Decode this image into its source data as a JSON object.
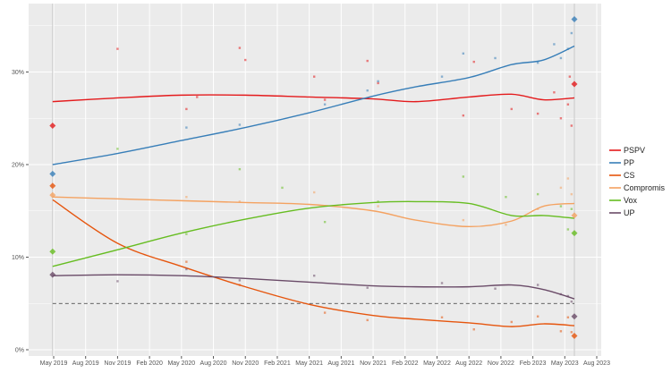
{
  "chart_data": {
    "type": "line",
    "title": "",
    "xlabel": "",
    "ylabel": "",
    "ylim": [
      0,
      36
    ],
    "xlim": [
      "2019-04",
      "2023-08"
    ],
    "y_ticks": [
      {
        "v": 0,
        "label": "0%"
      },
      {
        "v": 10,
        "label": "10%"
      },
      {
        "v": 20,
        "label": "20%"
      },
      {
        "v": 30,
        "label": "30%"
      }
    ],
    "x_ticks": [
      {
        "d": "2019-05",
        "label": "May 2019"
      },
      {
        "d": "2019-08",
        "label": "Aug 2019"
      },
      {
        "d": "2019-11",
        "label": "Nov 2019"
      },
      {
        "d": "2020-02",
        "label": "Feb 2020"
      },
      {
        "d": "2020-05",
        "label": "May 2020"
      },
      {
        "d": "2020-08",
        "label": "Aug 2020"
      },
      {
        "d": "2020-11",
        "label": "Nov 2020"
      },
      {
        "d": "2021-02",
        "label": "Feb 2021"
      },
      {
        "d": "2021-05",
        "label": "May 2021"
      },
      {
        "d": "2021-08",
        "label": "Aug 2021"
      },
      {
        "d": "2021-11",
        "label": "Nov 2021"
      },
      {
        "d": "2022-02",
        "label": "Feb 2022"
      },
      {
        "d": "2022-05",
        "label": "May 2022"
      },
      {
        "d": "2022-08",
        "label": "Aug 2022"
      },
      {
        "d": "2022-11",
        "label": "Nov 2022"
      },
      {
        "d": "2023-02",
        "label": "Feb 2023"
      },
      {
        "d": "2023-05",
        "label": "May 2023"
      },
      {
        "d": "2023-08",
        "label": "Aug 2023"
      }
    ],
    "grid": true,
    "threshold_line": 5,
    "election_dates": [
      "2019-04-28",
      "2023-05-28"
    ],
    "legend_position": "right",
    "trend_dates": [
      "2019-04-28",
      "2019-11-01",
      "2020-05-01",
      "2020-11-01",
      "2021-05-01",
      "2021-11-01",
      "2022-03-01",
      "2022-08-01",
      "2022-12-01",
      "2023-03-01",
      "2023-05-28"
    ],
    "series": [
      {
        "name": "PSPV",
        "color": "#e41a1c",
        "trend": [
          26.8,
          27.2,
          27.5,
          27.5,
          27.3,
          27.1,
          26.8,
          27.3,
          27.6,
          27.0,
          27.2
        ],
        "elections": [
          24.2,
          28.7
        ],
        "polls": [
          [
            "2019-11-01",
            32.5
          ],
          [
            "2020-05-15",
            26
          ],
          [
            "2020-06-15",
            27.3
          ],
          [
            "2020-10-15",
            32.6
          ],
          [
            "2020-11-01",
            31.3
          ],
          [
            "2021-05-15",
            29.5
          ],
          [
            "2021-06-15",
            27
          ],
          [
            "2021-10-15",
            31.2
          ],
          [
            "2021-11-15",
            28.8
          ],
          [
            "2022-07-15",
            25.3
          ],
          [
            "2022-08-15",
            31.1
          ],
          [
            "2022-12-01",
            26
          ],
          [
            "2023-02-15",
            25.5
          ],
          [
            "2023-04-01",
            27.8
          ],
          [
            "2023-04-20",
            25
          ],
          [
            "2023-05-10",
            26.5
          ],
          [
            "2023-05-15",
            29.5
          ],
          [
            "2023-05-20",
            24.2
          ]
        ]
      },
      {
        "name": "PP",
        "color": "#377eb8",
        "trend": [
          20.0,
          21.2,
          22.6,
          24.0,
          25.6,
          27.4,
          28.4,
          29.4,
          30.8,
          31.3,
          32.8
        ],
        "elections": [
          19.0,
          35.7
        ],
        "polls": [
          [
            "2020-05-15",
            24
          ],
          [
            "2020-10-15",
            24.3
          ],
          [
            "2021-06-15",
            26.5
          ],
          [
            "2021-10-15",
            28
          ],
          [
            "2021-11-15",
            29
          ],
          [
            "2022-05-15",
            29.5
          ],
          [
            "2022-07-15",
            32
          ],
          [
            "2022-10-15",
            31.5
          ],
          [
            "2023-02-15",
            31
          ],
          [
            "2023-04-01",
            33
          ],
          [
            "2023-04-20",
            31.5
          ],
          [
            "2023-05-10",
            32.5
          ],
          [
            "2023-05-20",
            34.2
          ]
        ]
      },
      {
        "name": "CS",
        "color": "#e6550d",
        "trend": [
          16.2,
          11.5,
          9.0,
          6.8,
          4.9,
          3.7,
          3.3,
          2.9,
          2.5,
          2.8,
          2.6
        ],
        "elections": [
          17.7,
          1.5
        ],
        "polls": [
          [
            "2020-05-15",
            9.5
          ],
          [
            "2020-10-15",
            7
          ],
          [
            "2021-06-15",
            4
          ],
          [
            "2021-10-15",
            3.2
          ],
          [
            "2022-05-15",
            3.5
          ],
          [
            "2022-08-15",
            2.2
          ],
          [
            "2022-12-01",
            3
          ],
          [
            "2023-02-15",
            3.6
          ],
          [
            "2023-04-20",
            2
          ],
          [
            "2023-05-10",
            3.5
          ],
          [
            "2023-05-20",
            1.9
          ]
        ]
      },
      {
        "name": "Compromis",
        "color": "#f4a261",
        "trend": [
          16.5,
          16.3,
          16.1,
          15.9,
          15.7,
          15.0,
          14.0,
          13.3,
          13.9,
          15.5,
          15.8
        ],
        "elections": [
          16.7,
          14.5
        ],
        "polls": [
          [
            "2020-05-15",
            16.5
          ],
          [
            "2020-10-15",
            16
          ],
          [
            "2021-05-15",
            17
          ],
          [
            "2021-11-15",
            15.5
          ],
          [
            "2022-07-15",
            14
          ],
          [
            "2022-11-15",
            13.5
          ],
          [
            "2023-02-15",
            15.2
          ],
          [
            "2023-04-20",
            17.5
          ],
          [
            "2023-05-10",
            18.5
          ],
          [
            "2023-05-20",
            16.8
          ]
        ]
      },
      {
        "name": "Vox",
        "color": "#66bd21",
        "trend": [
          9.0,
          10.8,
          12.6,
          14.1,
          15.3,
          15.9,
          16.0,
          15.8,
          14.5,
          14.5,
          14.2
        ],
        "elections": [
          10.6,
          12.6
        ],
        "polls": [
          [
            "2019-11-01",
            21.7
          ],
          [
            "2020-05-15",
            12.5
          ],
          [
            "2020-10-15",
            19.5
          ],
          [
            "2021-02-15",
            17.5
          ],
          [
            "2021-06-15",
            13.8
          ],
          [
            "2021-11-15",
            16
          ],
          [
            "2022-07-15",
            18.7
          ],
          [
            "2022-11-15",
            16.5
          ],
          [
            "2023-02-15",
            16.8
          ],
          [
            "2023-04-20",
            15.5
          ],
          [
            "2023-05-10",
            13
          ],
          [
            "2023-05-20",
            15.2
          ]
        ]
      },
      {
        "name": "UP",
        "color": "#6a4b68",
        "trend": [
          8.0,
          8.1,
          8.0,
          7.7,
          7.3,
          6.9,
          6.8,
          6.8,
          7.0,
          6.5,
          5.5
        ],
        "elections": [
          8.1,
          3.6
        ],
        "polls": [
          [
            "2019-11-01",
            7.4
          ],
          [
            "2020-05-15",
            8.7
          ],
          [
            "2020-10-15",
            7.5
          ],
          [
            "2021-05-15",
            8
          ],
          [
            "2021-10-15",
            6.7
          ],
          [
            "2022-05-15",
            7.2
          ],
          [
            "2022-10-15",
            6.6
          ],
          [
            "2023-02-15",
            7
          ],
          [
            "2023-04-20",
            6
          ],
          [
            "2023-05-10",
            5.8
          ],
          [
            "2023-05-20",
            5.2
          ]
        ]
      }
    ]
  }
}
